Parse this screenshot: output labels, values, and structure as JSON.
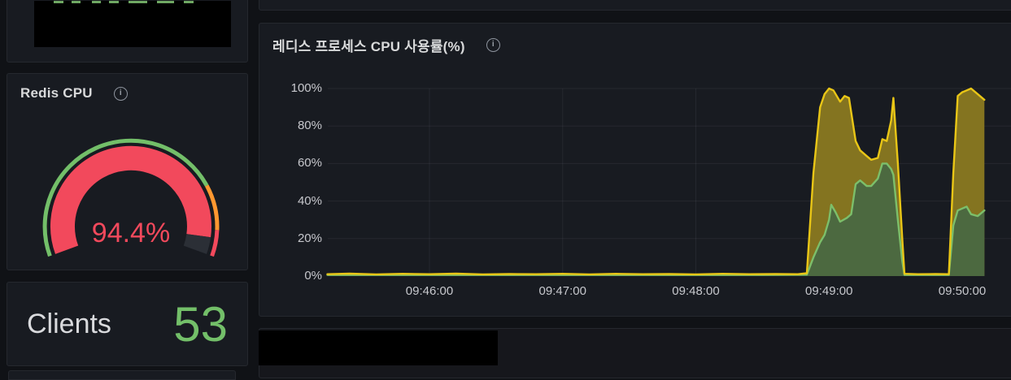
{
  "theme": {
    "page_bg": "#101216",
    "panel_bg": "#181B21",
    "panel_border": "#25282E",
    "title_color": "#D8D9DA",
    "axis_color": "#C7C8CD",
    "redacted_color": "#000000"
  },
  "left_column": {
    "top_panel": {
      "note": "redacted-content"
    },
    "gauge_panel": {
      "title": "Redis CPU",
      "info_icon_glyph": "i",
      "gauge": {
        "display": "94.4%",
        "value": 94.4,
        "min": 0,
        "max": 100,
        "value_color": "#F2495C",
        "track_color": "#2B2F36",
        "thresholds": [
          {
            "from": 0,
            "to": 78,
            "color": "#73BF69"
          },
          {
            "from": 78,
            "to": 92,
            "color": "#FF9830"
          },
          {
            "from": 92,
            "to": 100,
            "color": "#F2495C"
          }
        ]
      }
    },
    "clients_panel": {
      "label": "Clients",
      "value": "53",
      "value_color": "#73BF69"
    }
  },
  "chart_panel": {
    "info_icon_glyph": "i"
  },
  "chart_data": {
    "type": "area",
    "title": "레디스 프로세스 CPU 사용률(%)",
    "xlabel": "",
    "ylabel": "",
    "x_start": "09:45:14",
    "x_end": "09:50:22",
    "x_ticks": [
      "09:46:00",
      "09:47:00",
      "09:48:00",
      "09:49:00",
      "09:50:00"
    ],
    "y_ticks": [
      0,
      20,
      40,
      60,
      80,
      100
    ],
    "y_tick_suffix": "%",
    "ylim": [
      0,
      100
    ],
    "grid": true,
    "legend": "none",
    "series": [
      {
        "name": "yellow",
        "line_color": "#E9C616",
        "fill_color": "#847420",
        "points": [
          [
            "09:45:14",
            1.0
          ],
          [
            "09:45:24",
            1.3
          ],
          [
            "09:45:36",
            0.9
          ],
          [
            "09:45:48",
            1.2
          ],
          [
            "09:46:00",
            1.0
          ],
          [
            "09:46:12",
            1.3
          ],
          [
            "09:46:24",
            0.9
          ],
          [
            "09:46:36",
            1.1
          ],
          [
            "09:46:48",
            1.0
          ],
          [
            "09:47:00",
            1.2
          ],
          [
            "09:47:12",
            0.9
          ],
          [
            "09:47:24",
            1.2
          ],
          [
            "09:47:36",
            1.0
          ],
          [
            "09:47:48",
            1.1
          ],
          [
            "09:48:00",
            0.9
          ],
          [
            "09:48:12",
            1.2
          ],
          [
            "09:48:24",
            1.0
          ],
          [
            "09:48:36",
            1.1
          ],
          [
            "09:48:46",
            1.0
          ],
          [
            "09:48:50",
            1.5
          ],
          [
            "09:48:53",
            55
          ],
          [
            "09:48:56",
            90
          ],
          [
            "09:48:58",
            97
          ],
          [
            "09:49:00",
            100
          ],
          [
            "09:49:02",
            99
          ],
          [
            "09:49:05",
            93
          ],
          [
            "09:49:07",
            96
          ],
          [
            "09:49:09",
            95
          ],
          [
            "09:49:12",
            72
          ],
          [
            "09:49:14",
            67
          ],
          [
            "09:49:17",
            64
          ],
          [
            "09:49:19",
            62
          ],
          [
            "09:49:22",
            63
          ],
          [
            "09:49:24",
            73
          ],
          [
            "09:49:26",
            72
          ],
          [
            "09:49:28",
            83
          ],
          [
            "09:49:29",
            95
          ],
          [
            "09:49:31",
            60
          ],
          [
            "09:49:33",
            20
          ],
          [
            "09:49:34",
            1.2
          ],
          [
            "09:49:40",
            1.0
          ],
          [
            "09:49:48",
            1.1
          ],
          [
            "09:49:54",
            1.0
          ],
          [
            "09:49:56",
            55
          ],
          [
            "09:49:58",
            96
          ],
          [
            "09:50:00",
            98
          ],
          [
            "09:50:02",
            99
          ],
          [
            "09:50:04",
            100
          ],
          [
            "09:50:07",
            97
          ],
          [
            "09:50:10",
            94
          ]
        ]
      },
      {
        "name": "green",
        "line_color": "#7CBF6A",
        "fill_color": "#4C6940",
        "points": [
          [
            "09:45:14",
            0.6
          ],
          [
            "09:46:00",
            0.6
          ],
          [
            "09:46:30",
            0.6
          ],
          [
            "09:47:00",
            0.6
          ],
          [
            "09:47:30",
            0.6
          ],
          [
            "09:48:00",
            0.6
          ],
          [
            "09:48:30",
            0.6
          ],
          [
            "09:48:50",
            0.8
          ],
          [
            "09:48:53",
            10
          ],
          [
            "09:48:56",
            18
          ],
          [
            "09:48:58",
            22
          ],
          [
            "09:49:00",
            30
          ],
          [
            "09:49:01",
            38
          ],
          [
            "09:49:03",
            34
          ],
          [
            "09:49:05",
            29
          ],
          [
            "09:49:08",
            31
          ],
          [
            "09:49:10",
            33
          ],
          [
            "09:49:12",
            49
          ],
          [
            "09:49:14",
            51
          ],
          [
            "09:49:17",
            48
          ],
          [
            "09:49:19",
            48
          ],
          [
            "09:49:22",
            52
          ],
          [
            "09:49:24",
            60
          ],
          [
            "09:49:26",
            60
          ],
          [
            "09:49:28",
            57
          ],
          [
            "09:49:29",
            54
          ],
          [
            "09:49:31",
            30
          ],
          [
            "09:49:33",
            8
          ],
          [
            "09:49:34",
            0.6
          ],
          [
            "09:49:44",
            0.6
          ],
          [
            "09:49:54",
            0.6
          ],
          [
            "09:49:56",
            27
          ],
          [
            "09:49:58",
            35
          ],
          [
            "09:50:00",
            36
          ],
          [
            "09:50:02",
            37
          ],
          [
            "09:50:04",
            33
          ],
          [
            "09:50:07",
            32
          ],
          [
            "09:50:10",
            35
          ]
        ]
      }
    ]
  }
}
